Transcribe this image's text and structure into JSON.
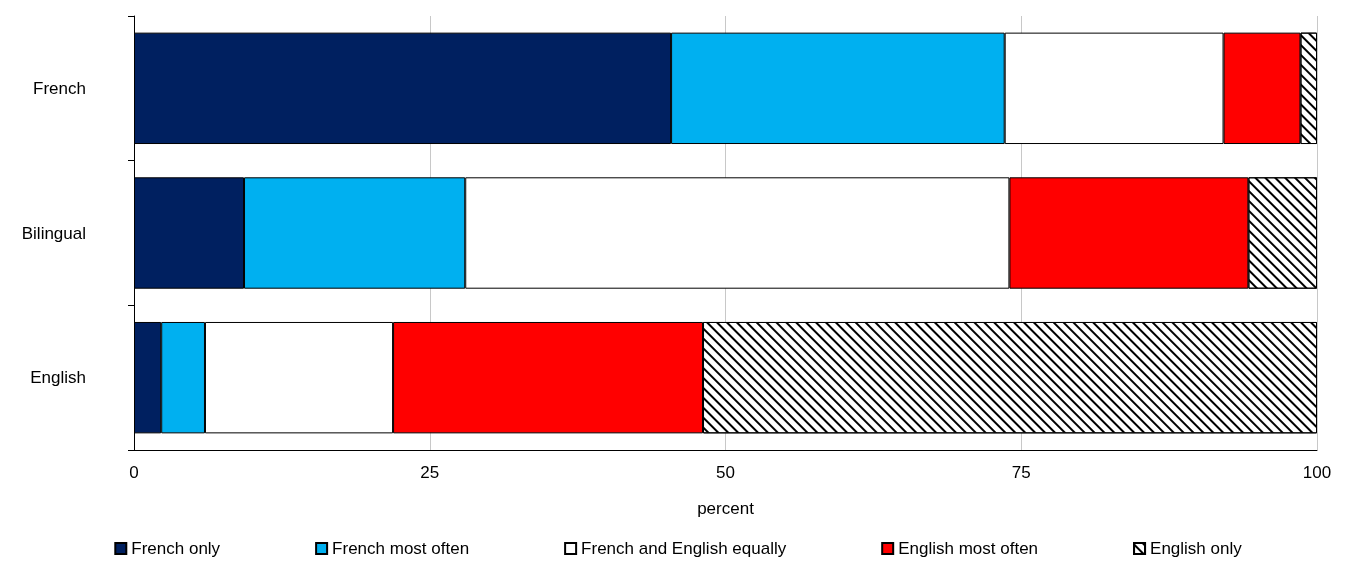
{
  "chart_data": {
    "type": "bar",
    "orientation": "horizontal",
    "stacked": true,
    "xlabel": "percent",
    "categories": [
      "French",
      "Bilingual",
      "English"
    ],
    "series": [
      {
        "name": "French only",
        "color": "#002060",
        "values": [
          45.4,
          9.3,
          2.3
        ]
      },
      {
        "name": "French most often",
        "color": "#00b0f0",
        "values": [
          28.2,
          18.7,
          3.7
        ]
      },
      {
        "name": "French and English equally",
        "color": "#ffffff",
        "values": [
          18.5,
          46.0,
          15.9
        ]
      },
      {
        "name": "English most often",
        "color": "#ff0000",
        "values": [
          6.5,
          20.2,
          26.2
        ]
      },
      {
        "name": "English only",
        "color": "#ffffff",
        "values": [
          1.4,
          5.8,
          51.9
        ]
      }
    ],
    "xlim": [
      0,
      100
    ],
    "xticks": [
      0,
      25,
      50,
      75,
      100
    ],
    "grid": "x",
    "legend": "bottom"
  }
}
